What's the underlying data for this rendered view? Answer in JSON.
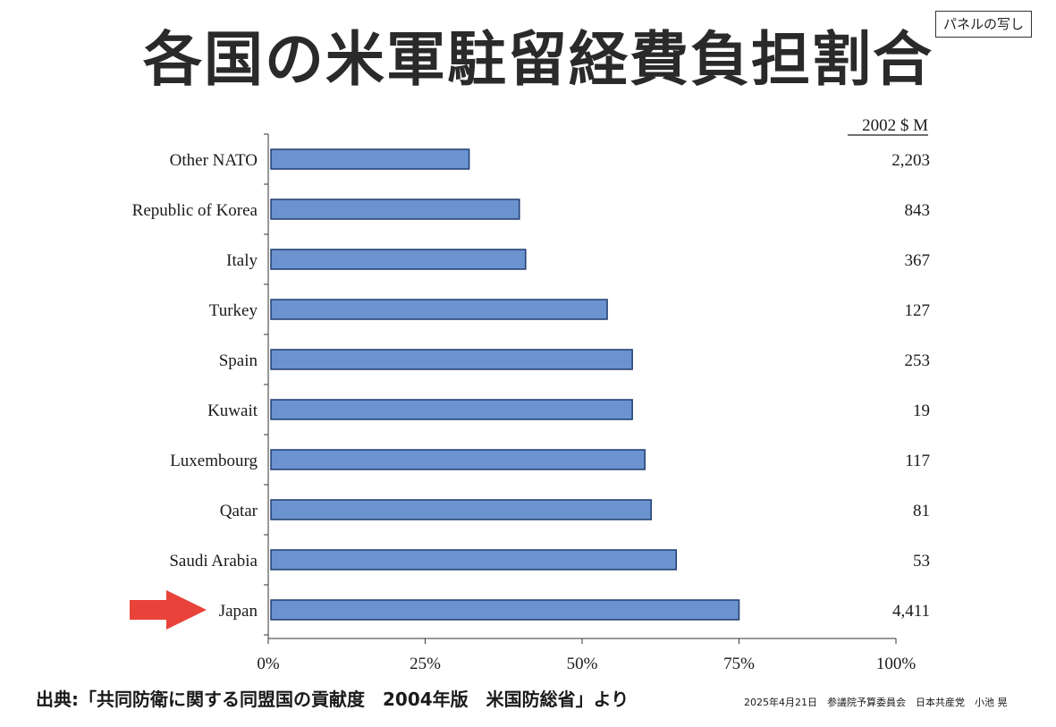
{
  "title": "各国の米軍駐留経費負担割合",
  "badge": "パネルの写し",
  "source": "出典:「共同防衛に関する同盟国の貢献度　2004年版　米国防総省」より",
  "footer": "2025年4月21日　参議院予算委員会　日本共産党　小池 晃",
  "colors": {
    "bar": "#6b93d0",
    "bar_border": "#1f3d6e",
    "highlight_arrow": "#e8423a"
  },
  "chart_data": {
    "type": "bar",
    "orientation": "horizontal",
    "categories": [
      "Other NATO",
      "Republic of Korea",
      "Italy",
      "Turkey",
      "Spain",
      "Kuwait",
      "Luxembourg",
      "Qatar",
      "Saudi Arabia",
      "Japan"
    ],
    "values": [
      32,
      40,
      41,
      54,
      58,
      58,
      60,
      61,
      65,
      75
    ],
    "value_unit": "%",
    "xlim": [
      0,
      100
    ],
    "x_ticks": [
      "0%",
      "25%",
      "50%",
      "75%",
      "100%"
    ],
    "amounts_header": "2002 $ M",
    "amounts": [
      "2,203",
      "843",
      "367",
      "127",
      "253",
      "19",
      "117",
      "81",
      "53",
      "4,411"
    ],
    "highlight": "Japan",
    "grid": false
  }
}
